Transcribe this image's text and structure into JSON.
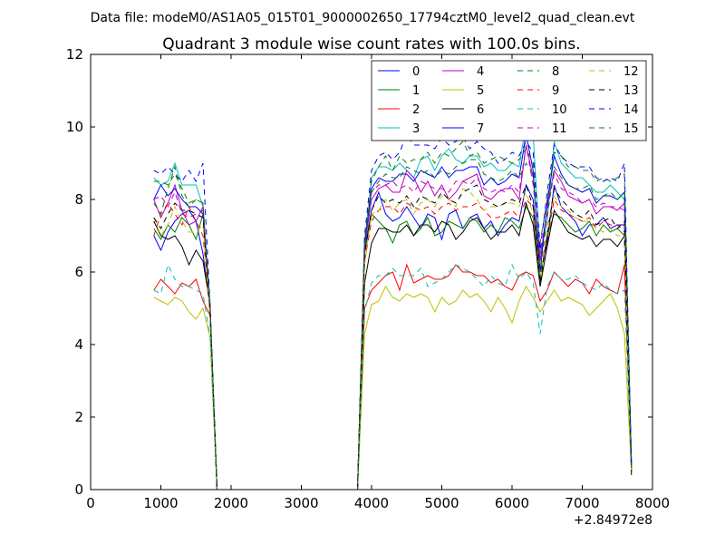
{
  "chart_data": {
    "type": "line",
    "suptitle": "Data file: modeM0/AS1A05_015T01_9000002650_17794cztM0_level2_quad_clean.evt",
    "title": "Quadrant 3 module wise count rates with 100.0s bins.",
    "xlabel": "",
    "ylabel": "",
    "x_offset_label": "+2.84972e8",
    "xlim": [
      0,
      8000
    ],
    "ylim": [
      0,
      12
    ],
    "x_ticks": [
      0,
      1000,
      2000,
      3000,
      4000,
      5000,
      6000,
      7000,
      8000
    ],
    "y_ticks": [
      0,
      2,
      4,
      6,
      8,
      10,
      12
    ],
    "grid": false,
    "legend_position": "top-right",
    "x": [
      900,
      1000,
      1100,
      1200,
      1300,
      1400,
      1500,
      1600,
      1700,
      1800,
      3800,
      3900,
      4000,
      4100,
      4200,
      4300,
      4400,
      4500,
      4600,
      4700,
      4800,
      4900,
      5000,
      5100,
      5200,
      5300,
      5400,
      5500,
      5600,
      5700,
      5800,
      5900,
      6000,
      6100,
      6200,
      6300,
      6400,
      6500,
      6600,
      6700,
      6800,
      6900,
      7000,
      7100,
      7200,
      7300,
      7400,
      7500,
      7600,
      7700
    ],
    "series": [
      {
        "name": "0",
        "color": "#0000ff",
        "dash": false,
        "values": [
          7.0,
          6.6,
          7.1,
          7.4,
          7.6,
          7.7,
          7.4,
          6.5,
          5.0,
          0,
          0,
          6.6,
          7.7,
          8.2,
          7.6,
          7.4,
          7.5,
          7.8,
          7.5,
          7.2,
          7.6,
          7.5,
          6.9,
          7.6,
          7.7,
          7.2,
          7.5,
          7.6,
          7.2,
          7.4,
          7.0,
          7.3,
          7.5,
          7.4,
          8.4,
          8.0,
          6.0,
          6.8,
          8.4,
          7.8,
          7.6,
          7.4,
          7.0,
          7.3,
          7.3,
          7.5,
          7.2,
          7.3,
          7.3,
          0.6
        ]
      },
      {
        "name": "1",
        "color": "#008000",
        "dash": false,
        "values": [
          7.2,
          6.9,
          7.3,
          7.1,
          7.5,
          7.3,
          6.9,
          7.6,
          5.0,
          0,
          0,
          6.5,
          7.6,
          7.4,
          7.2,
          6.8,
          7.3,
          7.4,
          7.0,
          7.2,
          7.5,
          7.0,
          7.1,
          7.4,
          7.3,
          7.2,
          7.5,
          7.4,
          7.1,
          7.3,
          7.1,
          7.5,
          7.4,
          7.2,
          7.8,
          7.5,
          5.8,
          7.0,
          7.6,
          7.5,
          7.3,
          7.1,
          7.2,
          7.4,
          7.0,
          7.3,
          7.1,
          7.2,
          7.0,
          0.5
        ]
      },
      {
        "name": "2",
        "color": "#ff0000",
        "dash": false,
        "values": [
          5.5,
          5.8,
          5.6,
          5.4,
          5.7,
          5.6,
          5.8,
          5.2,
          4.8,
          0,
          0,
          5.0,
          5.5,
          5.7,
          5.9,
          6.0,
          5.5,
          6.2,
          5.7,
          5.8,
          5.9,
          5.8,
          5.8,
          5.9,
          6.2,
          6.0,
          6.0,
          5.9,
          5.9,
          5.7,
          5.8,
          5.6,
          5.5,
          5.9,
          6.0,
          5.9,
          5.2,
          5.5,
          6.0,
          5.8,
          5.6,
          5.8,
          5.7,
          5.4,
          5.8,
          5.6,
          5.5,
          5.4,
          6.2,
          0.6
        ]
      },
      {
        "name": "3",
        "color": "#00bfbf",
        "dash": false,
        "values": [
          8.6,
          8.4,
          8.5,
          9.0,
          8.4,
          8.4,
          8.4,
          7.8,
          5.1,
          0,
          0,
          6.6,
          8.6,
          8.9,
          8.9,
          8.8,
          9.0,
          8.8,
          8.6,
          9.1,
          9.2,
          8.8,
          9.2,
          9.4,
          9.1,
          9.0,
          9.2,
          9.2,
          8.9,
          9.0,
          8.8,
          8.8,
          9.0,
          8.9,
          10.1,
          9.8,
          6.5,
          7.4,
          9.6,
          9.0,
          8.8,
          8.6,
          8.6,
          8.4,
          8.2,
          8.2,
          8.4,
          8.2,
          8.0,
          0.7
        ]
      },
      {
        "name": "4",
        "color": "#bf00bf",
        "dash": false,
        "values": [
          8.0,
          7.5,
          7.9,
          8.4,
          7.7,
          7.3,
          7.4,
          7.8,
          4.8,
          0,
          0,
          6.7,
          8.0,
          8.3,
          8.4,
          8.2,
          8.2,
          8.8,
          8.6,
          8.2,
          8.5,
          8.1,
          8.4,
          8.0,
          8.2,
          8.5,
          8.6,
          8.7,
          8.1,
          8.0,
          8.2,
          8.3,
          8.3,
          8.0,
          9.5,
          8.6,
          6.3,
          7.8,
          8.8,
          8.5,
          8.1,
          8.0,
          7.9,
          8.0,
          7.6,
          7.8,
          7.8,
          7.7,
          7.9,
          0.8
        ]
      },
      {
        "name": "5",
        "color": "#bfbf00",
        "dash": false,
        "values": [
          5.3,
          5.2,
          5.1,
          5.3,
          5.2,
          4.9,
          4.7,
          5.0,
          4.2,
          0,
          0,
          4.3,
          5.1,
          5.2,
          5.6,
          5.3,
          5.2,
          5.4,
          5.3,
          5.4,
          5.3,
          4.9,
          5.3,
          5.1,
          5.2,
          5.5,
          5.3,
          5.4,
          5.2,
          4.9,
          5.3,
          5.0,
          4.6,
          5.2,
          5.6,
          5.3,
          4.9,
          5.2,
          5.5,
          5.2,
          5.3,
          5.2,
          5.1,
          4.8,
          5.0,
          5.2,
          5.4,
          5.0,
          4.3,
          0.5
        ]
      },
      {
        "name": "6",
        "color": "#000000",
        "dash": false,
        "values": [
          7.4,
          7.0,
          6.9,
          7.0,
          6.7,
          6.2,
          6.6,
          6.3,
          5.1,
          0,
          0,
          5.7,
          6.8,
          7.2,
          7.2,
          7.1,
          7.1,
          7.3,
          7.0,
          7.3,
          7.3,
          7.1,
          7.4,
          7.3,
          6.9,
          7.1,
          7.4,
          7.5,
          7.2,
          6.9,
          7.1,
          7.1,
          7.3,
          7.0,
          7.9,
          7.3,
          5.6,
          6.7,
          7.7,
          7.4,
          7.1,
          7.0,
          6.9,
          7.0,
          6.7,
          6.9,
          6.9,
          6.7,
          7.0,
          0.4
        ]
      },
      {
        "name": "7",
        "color": "#0000ff",
        "dash": false,
        "values": [
          8.0,
          8.4,
          8.1,
          8.3,
          8.0,
          7.8,
          7.8,
          7.6,
          4.9,
          0,
          0,
          6.8,
          8.3,
          8.6,
          8.5,
          8.5,
          8.7,
          8.7,
          8.5,
          8.8,
          8.7,
          8.6,
          8.9,
          8.6,
          8.8,
          8.8,
          8.9,
          8.9,
          8.4,
          8.6,
          8.4,
          8.5,
          8.7,
          8.6,
          9.8,
          8.8,
          6.0,
          7.9,
          9.2,
          8.7,
          8.4,
          8.3,
          8.2,
          8.3,
          7.9,
          8.1,
          8.1,
          8.0,
          8.2,
          0.6
        ]
      },
      {
        "name": "8",
        "color": "#008000",
        "dash": true,
        "values": [
          8.5,
          8.5,
          8.4,
          8.7,
          8.3,
          7.9,
          8.0,
          7.9,
          5.0,
          0,
          0,
          6.9,
          8.5,
          8.9,
          9.2,
          8.8,
          9.2,
          9.0,
          9.1,
          9.1,
          9.3,
          9.0,
          9.3,
          9.2,
          9.4,
          9.6,
          9.2,
          9.3,
          9.0,
          9.1,
          9.2,
          9.1,
          9.0,
          9.1,
          9.4,
          9.0,
          6.8,
          8.0,
          9.3,
          9.2,
          8.9,
          8.9,
          8.8,
          8.8,
          8.5,
          8.6,
          8.5,
          8.6,
          8.7,
          0.5
        ]
      },
      {
        "name": "9",
        "color": "#ff0000",
        "dash": true,
        "values": [
          7.0,
          7.6,
          7.9,
          7.6,
          7.3,
          7.8,
          7.4,
          7.0,
          5.0,
          0,
          0,
          6.3,
          7.4,
          7.7,
          7.8,
          7.8,
          7.6,
          7.9,
          7.8,
          7.7,
          7.8,
          7.6,
          7.8,
          7.9,
          7.7,
          7.8,
          7.8,
          7.9,
          7.7,
          7.5,
          7.5,
          7.6,
          7.7,
          7.5,
          8.0,
          7.8,
          6.0,
          6.9,
          8.0,
          7.7,
          7.6,
          7.5,
          7.4,
          7.5,
          7.2,
          7.4,
          7.3,
          7.3,
          7.1,
          0.6
        ]
      },
      {
        "name": "10",
        "color": "#00bfbf",
        "dash": true,
        "values": [
          5.5,
          5.4,
          6.2,
          5.8,
          5.6,
          5.6,
          5.5,
          5.4,
          4.2,
          0,
          0,
          4.9,
          5.7,
          5.9,
          5.9,
          6.1,
          5.9,
          5.9,
          5.9,
          6.1,
          5.6,
          5.7,
          5.8,
          6.0,
          6.2,
          6.1,
          6.0,
          5.8,
          5.6,
          5.9,
          5.7,
          5.6,
          6.2,
          5.8,
          6.0,
          5.7,
          4.3,
          5.6,
          6.0,
          5.8,
          5.8,
          5.9,
          5.7,
          5.6,
          5.5,
          5.7,
          5.5,
          5.4,
          5.5,
          0.5
        ]
      },
      {
        "name": "11",
        "color": "#bf00bf",
        "dash": true,
        "values": [
          8.0,
          8.1,
          7.8,
          8.2,
          7.6,
          7.5,
          7.6,
          7.7,
          5.0,
          0,
          0,
          6.6,
          8.2,
          8.4,
          8.4,
          8.5,
          8.3,
          8.4,
          8.2,
          8.5,
          8.4,
          8.3,
          8.3,
          8.2,
          8.5,
          8.5,
          8.4,
          8.6,
          8.3,
          8.2,
          8.3,
          8.2,
          8.4,
          8.2,
          9.5,
          8.4,
          6.5,
          7.7,
          8.7,
          8.3,
          8.2,
          8.1,
          7.9,
          8.0,
          7.8,
          7.9,
          7.8,
          7.8,
          7.7,
          0.6
        ]
      },
      {
        "name": "12",
        "color": "#bfbf00",
        "dash": true,
        "values": [
          7.5,
          7.0,
          7.3,
          7.8,
          7.4,
          7.1,
          7.1,
          7.3,
          4.7,
          0,
          0,
          6.2,
          7.6,
          7.7,
          8.0,
          7.7,
          7.9,
          8.0,
          7.6,
          7.9,
          8.0,
          7.8,
          8.1,
          8.0,
          7.8,
          8.3,
          8.2,
          8.0,
          7.7,
          7.8,
          7.8,
          7.9,
          7.9,
          7.8,
          8.2,
          7.6,
          5.8,
          7.2,
          8.1,
          7.8,
          7.7,
          7.5,
          7.4,
          7.4,
          7.2,
          7.1,
          7.2,
          7.0,
          7.0,
          0.5
        ]
      },
      {
        "name": "13",
        "color": "#000000",
        "dash": true,
        "values": [
          7.5,
          7.2,
          7.6,
          7.9,
          7.7,
          7.7,
          7.6,
          7.5,
          5.0,
          0,
          0,
          6.5,
          7.7,
          8.1,
          7.9,
          8.0,
          7.9,
          8.1,
          7.8,
          8.1,
          8.0,
          7.9,
          8.2,
          8.0,
          7.9,
          8.2,
          8.3,
          8.4,
          8.0,
          7.9,
          7.8,
          7.9,
          8.0,
          7.9,
          8.4,
          7.8,
          5.7,
          7.0,
          8.3,
          8.0,
          7.8,
          7.6,
          7.5,
          7.7,
          7.3,
          7.4,
          7.5,
          7.2,
          7.4,
          0.5
        ]
      },
      {
        "name": "14",
        "color": "#0000ff",
        "dash": true,
        "values": [
          8.8,
          8.7,
          8.9,
          8.7,
          8.5,
          8.8,
          8.5,
          9.0,
          5.1,
          0,
          0,
          7.0,
          8.8,
          9.2,
          9.3,
          9.1,
          9.3,
          9.8,
          9.5,
          9.5,
          9.5,
          9.4,
          9.7,
          9.5,
          9.6,
          9.7,
          9.4,
          9.6,
          9.4,
          9.3,
          9.0,
          9.1,
          9.3,
          9.2,
          9.6,
          9.3,
          6.6,
          8.2,
          9.5,
          9.2,
          9.0,
          8.9,
          8.9,
          8.9,
          8.6,
          8.5,
          8.6,
          8.5,
          9.0,
          0.6
        ]
      },
      {
        "name": "15",
        "color": "#008000",
        "dash": true,
        "values": [
          7.9,
          7.6,
          8.3,
          8.9,
          8.1,
          7.8,
          8.0,
          7.9,
          5.0,
          0,
          0,
          6.7,
          8.2,
          8.5,
          8.7,
          8.6,
          8.6,
          8.9,
          8.8,
          8.7,
          8.8,
          8.6,
          8.8,
          8.7,
          8.9,
          9.0,
          9.1,
          9.1,
          8.7,
          8.6,
          8.5,
          8.6,
          8.8,
          8.6,
          9.0,
          8.7,
          6.0,
          7.5,
          8.9,
          8.6,
          8.4,
          8.3,
          8.3,
          8.4,
          8.0,
          8.1,
          8.2,
          8.0,
          8.2,
          0.6
        ]
      }
    ]
  }
}
